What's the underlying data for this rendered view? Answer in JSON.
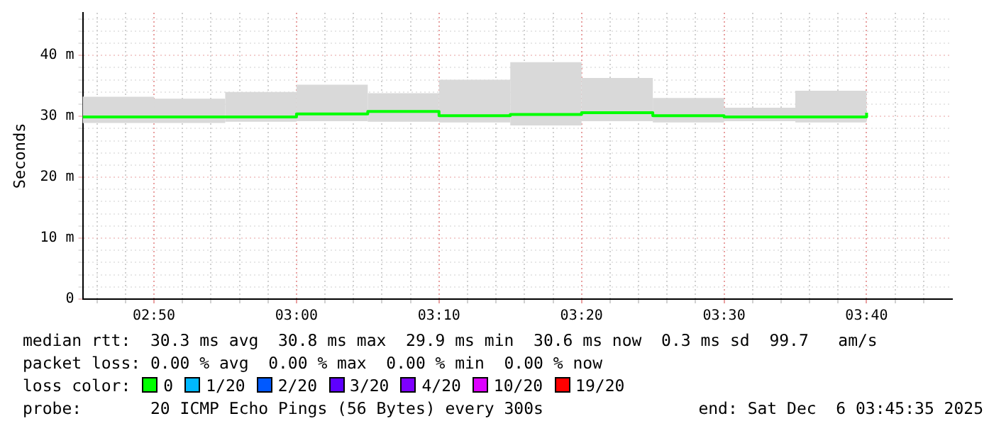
{
  "chart_data": {
    "type": "step",
    "ylabel": "Seconds",
    "legend_title": "loss color:",
    "legend": "bottom",
    "grid": true,
    "x": [
      "2025-12-06T02:45",
      "2025-12-06T02:50",
      "2025-12-06T02:55",
      "2025-12-06T03:00",
      "2025-12-06T03:05",
      "2025-12-06T03:10",
      "2025-12-06T03:15",
      "2025-12-06T03:20",
      "2025-12-06T03:25",
      "2025-12-06T03:30",
      "2025-12-06T03:35",
      "2025-12-06T03:40"
    ],
    "series": [
      {
        "name": "0",
        "color": "#00ff00",
        "values": [
          29.9,
          29.9,
          29.9,
          30.4,
          30.8,
          30.1,
          30.3,
          30.6,
          30.1,
          29.9,
          29.9,
          30.6
        ],
        "lower": [
          28.9,
          28.9,
          28.9,
          29.1,
          29.2,
          29.1,
          29.0,
          28.5,
          29.2,
          29.0,
          29.2,
          29.0
        ],
        "upper": [
          33.2,
          33.2,
          32.9,
          34.0,
          35.2,
          33.8,
          36.0,
          38.9,
          36.3,
          33.0,
          31.4,
          34.2
        ]
      },
      {
        "name": "1/20",
        "color": "#00b8ff",
        "values": [
          null,
          null,
          null,
          null,
          null,
          null,
          null,
          null,
          null,
          null,
          null,
          null
        ]
      },
      {
        "name": "2/20",
        "color": "#0059ff",
        "values": [
          null,
          null,
          null,
          null,
          null,
          null,
          null,
          null,
          null,
          null,
          null,
          null
        ]
      },
      {
        "name": "3/20",
        "color": "#5e00ff",
        "values": [
          null,
          null,
          null,
          null,
          null,
          null,
          null,
          null,
          null,
          null,
          null,
          null
        ]
      },
      {
        "name": "4/20",
        "color": "#7e00ff",
        "values": [
          null,
          null,
          null,
          null,
          null,
          null,
          null,
          null,
          null,
          null,
          null,
          null
        ]
      },
      {
        "name": "10/20",
        "color": "#dd00ff",
        "values": [
          null,
          null,
          null,
          null,
          null,
          null,
          null,
          null,
          null,
          null,
          null,
          null
        ]
      },
      {
        "name": "19/20",
        "color": "#ff0000",
        "values": [
          null,
          null,
          null,
          null,
          null,
          null,
          null,
          null,
          null,
          null,
          null,
          null
        ]
      }
    ],
    "xlim": [
      "2025-12-06T02:45",
      "2025-12-06T03:46"
    ],
    "xticks": [
      {
        "value": "2025-12-06T02:46",
        "label": null
      },
      {
        "value": "2025-12-06T02:48",
        "label": null
      },
      {
        "value": "2025-12-06T02:50",
        "label": "02:50"
      },
      {
        "value": "2025-12-06T02:52",
        "label": null
      },
      {
        "value": "2025-12-06T02:54",
        "label": null
      },
      {
        "value": "2025-12-06T02:56",
        "label": null
      },
      {
        "value": "2025-12-06T02:58",
        "label": null
      },
      {
        "value": "2025-12-06T03:00",
        "label": "03:00"
      },
      {
        "value": "2025-12-06T03:02",
        "label": null
      },
      {
        "value": "2025-12-06T03:04",
        "label": null
      },
      {
        "value": "2025-12-06T03:06",
        "label": null
      },
      {
        "value": "2025-12-06T03:08",
        "label": null
      },
      {
        "value": "2025-12-06T03:10",
        "label": "03:10"
      },
      {
        "value": "2025-12-06T03:12",
        "label": null
      },
      {
        "value": "2025-12-06T03:14",
        "label": null
      },
      {
        "value": "2025-12-06T03:16",
        "label": null
      },
      {
        "value": "2025-12-06T03:18",
        "label": null
      },
      {
        "value": "2025-12-06T03:20",
        "label": "03:20"
      },
      {
        "value": "2025-12-06T03:22",
        "label": null
      },
      {
        "value": "2025-12-06T03:24",
        "label": null
      },
      {
        "value": "2025-12-06T03:26",
        "label": null
      },
      {
        "value": "2025-12-06T03:28",
        "label": null
      },
      {
        "value": "2025-12-06T03:30",
        "label": "03:30"
      },
      {
        "value": "2025-12-06T03:32",
        "label": null
      },
      {
        "value": "2025-12-06T03:34",
        "label": null
      },
      {
        "value": "2025-12-06T03:36",
        "label": null
      },
      {
        "value": "2025-12-06T03:38",
        "label": null
      },
      {
        "value": "2025-12-06T03:40",
        "label": "03:40"
      },
      {
        "value": "2025-12-06T03:42",
        "label": null
      },
      {
        "value": "2025-12-06T03:44",
        "label": null
      }
    ],
    "ylim": [
      0,
      47
    ],
    "yticks": [
      0,
      {
        "value": 2,
        "label": null
      },
      {
        "value": 4,
        "label": null
      },
      {
        "value": 6,
        "label": null
      },
      {
        "value": 8,
        "label": null
      },
      {
        "value": 10,
        "label": "10 m"
      },
      {
        "value": 12,
        "label": null
      },
      {
        "value": 14,
        "label": null
      },
      {
        "value": 16,
        "label": null
      },
      {
        "value": 18,
        "label": null
      },
      {
        "value": 20,
        "label": "20 m"
      },
      {
        "value": 22,
        "label": null
      },
      {
        "value": 24,
        "label": null
      },
      {
        "value": 26,
        "label": null
      },
      {
        "value": 28,
        "label": null
      },
      {
        "value": 30,
        "label": "30 m"
      },
      {
        "value": 32,
        "label": null
      },
      {
        "value": 34,
        "label": null
      },
      {
        "value": 36,
        "label": null
      },
      {
        "value": 38,
        "label": null
      },
      {
        "value": 40,
        "label": "40 m"
      },
      {
        "value": 42,
        "label": null
      },
      {
        "value": 44,
        "label": null
      },
      {
        "value": 46,
        "label": null
      }
    ],
    "annotations": [
      "median rtt:  30.3 ms avg  30.8 ms max  29.9 ms min  30.6 ms now  0.3 ms sd  99.7   am/s",
      "packet loss: 0.00 % avg  0.00 % max  0.00 % min  0.00 % now",
      "probe:       20 ICMP Echo Pings (56 Bytes) every 300s",
      "end: Sat Dec  6 03:45:35 2025"
    ]
  }
}
